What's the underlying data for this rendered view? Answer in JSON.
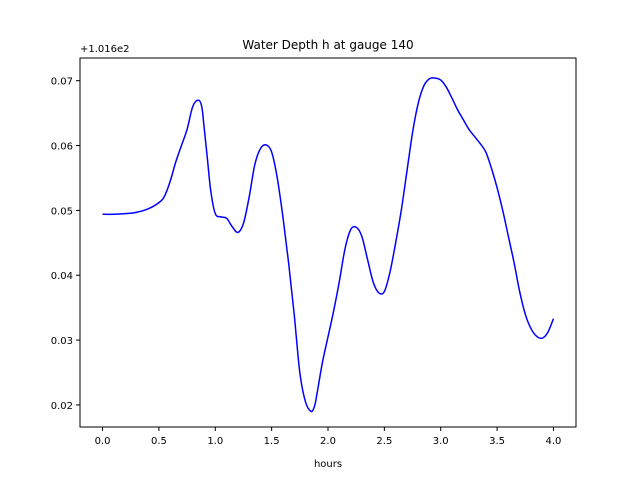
{
  "chart_data": {
    "type": "line",
    "title": "Water Depth h at gauge 140",
    "xlabel": "hours",
    "ylabel": "",
    "y_offset_label": "+1.016e2",
    "y_offset": 101.6,
    "xlim": [
      -0.2,
      4.2
    ],
    "ylim": [
      0.0166,
      0.0735
    ],
    "x_ticks": [
      0.0,
      0.5,
      1.0,
      1.5,
      2.0,
      2.5,
      3.0,
      3.5,
      4.0
    ],
    "x_tick_labels": [
      "0.0",
      "0.5",
      "1.0",
      "1.5",
      "2.0",
      "2.5",
      "3.0",
      "3.5",
      "4.0"
    ],
    "y_ticks": [
      0.02,
      0.03,
      0.04,
      0.05,
      0.06,
      0.07
    ],
    "y_tick_labels": [
      "0.02",
      "0.03",
      "0.04",
      "0.05",
      "0.06",
      "0.07"
    ],
    "grid": false,
    "legend": "none",
    "series": [
      {
        "color": "#0000ff",
        "x": [
          0.0,
          0.1,
          0.2,
          0.3,
          0.4,
          0.5,
          0.55,
          0.6,
          0.65,
          0.7,
          0.75,
          0.8,
          0.85,
          0.88,
          0.9,
          0.93,
          0.96,
          1.0,
          1.05,
          1.1,
          1.15,
          1.2,
          1.25,
          1.3,
          1.35,
          1.4,
          1.45,
          1.5,
          1.55,
          1.6,
          1.65,
          1.7,
          1.75,
          1.8,
          1.85,
          1.88,
          1.9,
          1.95,
          2.0,
          2.05,
          2.1,
          2.15,
          2.2,
          2.25,
          2.3,
          2.35,
          2.4,
          2.45,
          2.5,
          2.55,
          2.6,
          2.65,
          2.7,
          2.75,
          2.8,
          2.85,
          2.9,
          2.95,
          3.0,
          3.05,
          3.1,
          3.15,
          3.2,
          3.25,
          3.3,
          3.35,
          3.4,
          3.45,
          3.5,
          3.55,
          3.6,
          3.65,
          3.7,
          3.75,
          3.8,
          3.85,
          3.9,
          3.95,
          4.0
        ],
        "y": [
          0.0494,
          0.0494,
          0.0495,
          0.0497,
          0.0502,
          0.0512,
          0.0522,
          0.0545,
          0.0575,
          0.06,
          0.0625,
          0.066,
          0.067,
          0.066,
          0.063,
          0.058,
          0.053,
          0.0495,
          0.049,
          0.0488,
          0.0475,
          0.0466,
          0.048,
          0.052,
          0.057,
          0.0595,
          0.0601,
          0.059,
          0.055,
          0.049,
          0.042,
          0.034,
          0.025,
          0.0205,
          0.019,
          0.0198,
          0.0215,
          0.0265,
          0.0305,
          0.0345,
          0.039,
          0.044,
          0.047,
          0.0474,
          0.046,
          0.0425,
          0.039,
          0.0373,
          0.0375,
          0.0405,
          0.045,
          0.05,
          0.056,
          0.062,
          0.0665,
          0.0692,
          0.0703,
          0.0704,
          0.0701,
          0.069,
          0.0673,
          0.0655,
          0.064,
          0.0625,
          0.0614,
          0.0603,
          0.059,
          0.0565,
          0.0535,
          0.05,
          0.046,
          0.042,
          0.0375,
          0.034,
          0.0318,
          0.0306,
          0.0303,
          0.0312,
          0.0333
        ]
      }
    ]
  }
}
